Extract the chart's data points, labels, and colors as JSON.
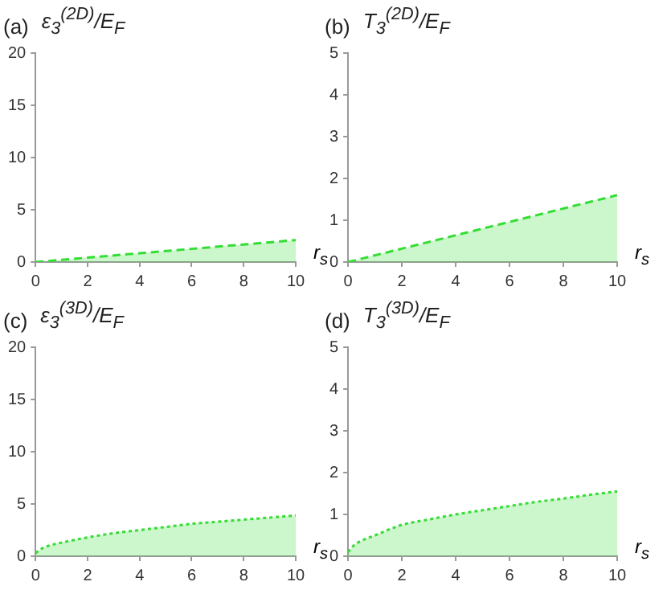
{
  "chart_data": [
    {
      "type": "area",
      "title": "ε$_{3}$$^{(2D)}$/E$_{F}$",
      "xlabel": "r$_{s}$",
      "annotations": [
        "(a)"
      ],
      "xlim": [
        0,
        10
      ],
      "xticks": [
        0,
        2,
        4,
        6,
        8,
        10
      ],
      "ylim": [
        0,
        20
      ],
      "yticks": [
        0,
        5,
        10,
        15,
        20
      ],
      "series": [
        {
          "color": "#33dd33",
          "line_style": "dashed",
          "x": [
            0,
            2,
            4,
            6,
            8,
            10
          ],
          "values": [
            0,
            0.42,
            0.84,
            1.26,
            1.68,
            2.1
          ]
        }
      ]
    },
    {
      "type": "area",
      "title": "T$_{3}$$^{(2D)}$/E$_{F}$",
      "xlabel": "r$_{s}$",
      "annotations": [
        "(b)"
      ],
      "xlim": [
        0,
        10
      ],
      "xticks": [
        0,
        2,
        4,
        6,
        8,
        10
      ],
      "ylim": [
        0,
        5
      ],
      "yticks": [
        0,
        1,
        2,
        3,
        4,
        5
      ],
      "series": [
        {
          "color": "#33dd33",
          "line_style": "dashed",
          "x": [
            0,
            2,
            4,
            6,
            8,
            10
          ],
          "values": [
            0,
            0.32,
            0.64,
            0.96,
            1.28,
            1.6
          ]
        }
      ]
    },
    {
      "type": "area",
      "title": "ε$_{3}$$^{(3D)}$/E$_{F}$",
      "xlabel": "r$_{s}$",
      "annotations": [
        "(c)"
      ],
      "xlim": [
        0,
        10
      ],
      "xticks": [
        0,
        2,
        4,
        6,
        8,
        10
      ],
      "ylim": [
        0,
        20
      ],
      "yticks": [
        0,
        5,
        10,
        15,
        20
      ],
      "series": [
        {
          "color": "#33dd33",
          "line_style": "dotted",
          "x": [
            0,
            0.25,
            0.5,
            1,
            2,
            3,
            4,
            5,
            6,
            7,
            8,
            9,
            10
          ],
          "values": [
            0.3,
            0.75,
            1.0,
            1.3,
            1.8,
            2.2,
            2.5,
            2.8,
            3.1,
            3.3,
            3.5,
            3.7,
            3.9
          ]
        }
      ]
    },
    {
      "type": "area",
      "title": "T$_{3}$$^{(3D)}$/E$_{F}$",
      "xlabel": "r$_{s}$",
      "annotations": [
        "(d)"
      ],
      "xlim": [
        0,
        10
      ],
      "xticks": [
        0,
        2,
        4,
        6,
        8,
        10
      ],
      "ylim": [
        0,
        5
      ],
      "yticks": [
        0,
        1,
        2,
        3,
        4,
        5
      ],
      "series": [
        {
          "color": "#33dd33",
          "line_style": "dotted",
          "x": [
            0,
            0.25,
            0.5,
            1,
            2,
            3,
            4,
            5,
            6,
            7,
            8,
            9,
            10
          ],
          "values": [
            0.1,
            0.28,
            0.37,
            0.5,
            0.75,
            0.88,
            1.0,
            1.1,
            1.2,
            1.3,
            1.38,
            1.47,
            1.55
          ]
        }
      ]
    }
  ]
}
